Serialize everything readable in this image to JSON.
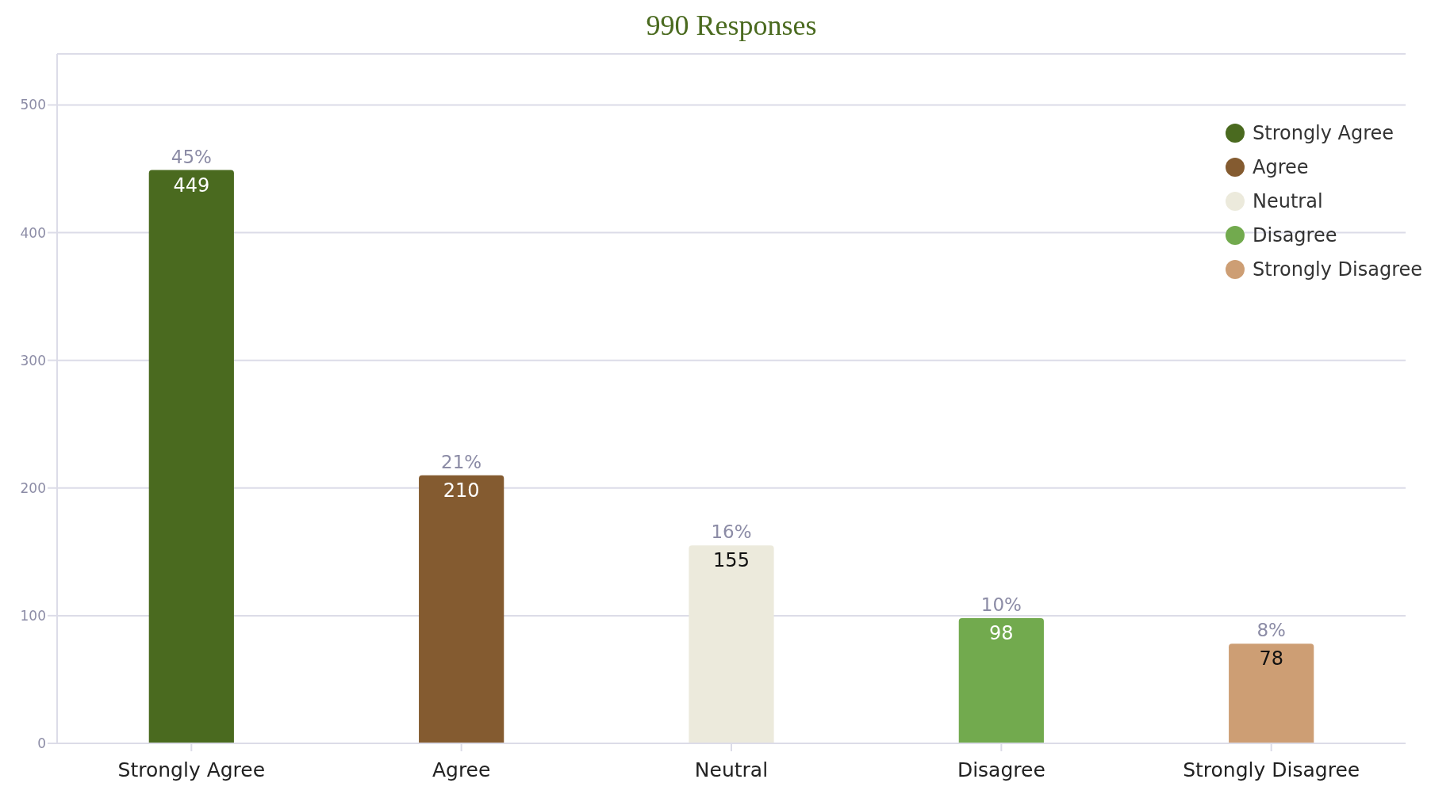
{
  "chart_data": {
    "type": "bar",
    "title": "990 Responses",
    "categories": [
      "Strongly Agree",
      "Agree",
      "Neutral",
      "Disagree",
      "Strongly Disagree"
    ],
    "series": [
      {
        "name": "Strongly Agree",
        "color": "#4a6a1f",
        "values": [
          449,
          null,
          null,
          null,
          null
        ]
      },
      {
        "name": "Agree",
        "color": "#845b30",
        "values": [
          null,
          210,
          null,
          null,
          null
        ]
      },
      {
        "name": "Neutral",
        "color": "#eceadc",
        "values": [
          null,
          null,
          155,
          null,
          null
        ]
      },
      {
        "name": "Disagree",
        "color": "#72aa4e",
        "values": [
          null,
          null,
          null,
          98,
          null
        ]
      },
      {
        "name": "Strongly Disagree",
        "color": "#cd9e74",
        "values": [
          null,
          null,
          null,
          null,
          78
        ]
      }
    ],
    "data_labels": true,
    "annotations": [
      {
        "text": "45%",
        "x": "Strongly Agree",
        "y": 449
      },
      {
        "text": "21%",
        "x": "Agree",
        "y": 210
      },
      {
        "text": "16%",
        "x": "Neutral",
        "y": 155
      },
      {
        "text": "10%",
        "x": "Disagree",
        "y": 98
      },
      {
        "text": "8%",
        "x": "Strongly Disagree",
        "y": 78
      }
    ],
    "ylim": [
      0,
      540
    ],
    "yticks": [
      0,
      100,
      200,
      300,
      400,
      500
    ],
    "grid": "y",
    "legend": "top right"
  }
}
